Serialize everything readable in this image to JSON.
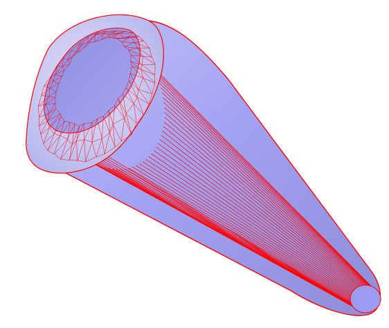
{
  "scene": {
    "object": "truncated-cone-mesh",
    "render_mode": "shaded-with-wireframe",
    "colors": {
      "background": "#ffffff",
      "surface_light": "#d6d6f8",
      "surface_mid": "#a3a3f3",
      "surface_dark": "#8f8fd6",
      "wireframe": "#ff0000"
    }
  }
}
